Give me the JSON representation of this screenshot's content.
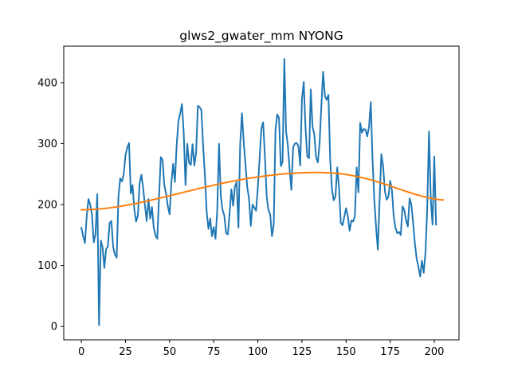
{
  "chart_data": {
    "type": "line",
    "title": "glws2_gwater_mm NYONG",
    "xlabel": "",
    "ylabel": "",
    "xlim": [
      -10,
      214
    ],
    "ylim": [
      -22,
      460
    ],
    "x_ticks": [
      0,
      25,
      50,
      75,
      100,
      125,
      150,
      175,
      200
    ],
    "y_ticks": [
      0,
      100,
      200,
      300,
      400
    ],
    "grid": false,
    "series": [
      {
        "color": "#1f77b4",
        "x_start": 0,
        "x_step": 1,
        "values": [
          162,
          148,
          137,
          180,
          209,
          200,
          183,
          138,
          152,
          217,
          2,
          141,
          130,
          96,
          127,
          131,
          170,
          173,
          130,
          118,
          113,
          213,
          243,
          238,
          250,
          281,
          294,
          301,
          218,
          232,
          192,
          172,
          182,
          235,
          249,
          227,
          199,
          173,
          209,
          177,
          196,
          162,
          149,
          144,
          213,
          278,
          273,
          232,
          218,
          197,
          184,
          236,
          267,
          237,
          298,
          337,
          350,
          365,
          317,
          232,
          300,
          269,
          265,
          299,
          264,
          285,
          362,
          360,
          355,
          296,
          248,
          188,
          160,
          177,
          148,
          163,
          144,
          191,
          300,
          214,
          191,
          182,
          153,
          151,
          186,
          225,
          198,
          230,
          237,
          162,
          300,
          350,
          302,
          266,
          228,
          210,
          165,
          200,
          195,
          190,
          228,
          276,
          325,
          335,
          279,
          214,
          191,
          184,
          148,
          167,
          323,
          348,
          342,
          263,
          270,
          439,
          320,
          297,
          258,
          224,
          294,
          300,
          301,
          296,
          264,
          373,
          401,
          327,
          279,
          276,
          389,
          328,
          315,
          278,
          269,
          301,
          363,
          418,
          378,
          372,
          380,
          273,
          225,
          207,
          214,
          261,
          228,
          170,
          166,
          180,
          194,
          181,
          157,
          174,
          172,
          181,
          261,
          220,
          334,
          318,
          324,
          323,
          312,
          328,
          368,
          273,
          208,
          163,
          126,
          207,
          283,
          263,
          222,
          208,
          213,
          239,
          223,
          180,
          162,
          153,
          155,
          150,
          197,
          191,
          174,
          164,
          210,
          200,
          170,
          136,
          111,
          98,
          82,
          108,
          88,
          121,
          194,
          320,
          210,
          167,
          279,
          167
        ]
      },
      {
        "color": "#ff7f0e",
        "x_start": 0,
        "x_step": 1,
        "values": [
          191.5,
          191.5,
          191.6,
          191.6,
          191.7,
          191.8,
          192.0,
          192.1,
          192.3,
          192.5,
          192.8,
          193.0,
          193.3,
          193.6,
          193.9,
          194.2,
          194.6,
          195.0,
          195.4,
          195.8,
          196.2,
          196.7,
          197.1,
          197.6,
          198.1,
          198.6,
          199.1,
          199.7,
          200.2,
          200.8,
          201.3,
          201.9,
          202.5,
          203.1,
          203.7,
          204.4,
          205.0,
          205.6,
          206.3,
          206.9,
          207.6,
          208.3,
          208.9,
          209.6,
          210.3,
          211.0,
          211.7,
          212.4,
          213.1,
          213.8,
          214.5,
          215.2,
          215.9,
          216.6,
          217.3,
          218.0,
          218.7,
          219.4,
          220.2,
          220.9,
          221.6,
          222.3,
          223.0,
          223.7,
          224.4,
          225.1,
          225.8,
          226.5,
          227.2,
          227.8,
          228.5,
          229.2,
          229.9,
          230.5,
          231.2,
          231.8,
          232.5,
          233.1,
          233.8,
          234.4,
          235.0,
          235.6,
          236.2,
          236.8,
          237.4,
          238.0,
          238.5,
          239.1,
          239.6,
          240.2,
          240.7,
          241.2,
          241.7,
          242.2,
          242.7,
          243.2,
          243.6,
          244.1,
          244.5,
          245.0,
          245.4,
          245.8,
          246.2,
          246.5,
          246.9,
          247.3,
          247.6,
          248.0,
          248.3,
          248.6,
          248.9,
          249.2,
          249.5,
          249.8,
          250.1,
          250.3,
          250.6,
          250.8,
          251.0,
          251.2,
          251.4,
          251.6,
          251.8,
          251.9,
          252.1,
          252.2,
          252.3,
          252.4,
          252.5,
          252.6,
          252.6,
          252.7,
          252.7,
          252.7,
          252.7,
          252.7,
          252.6,
          252.5,
          252.4,
          252.3,
          252.2,
          252.0,
          251.8,
          251.6,
          251.4,
          251.1,
          250.8,
          250.5,
          250.1,
          249.7,
          249.3,
          248.9,
          248.4,
          247.9,
          247.4,
          246.8,
          246.2,
          245.6,
          244.9,
          244.3,
          243.6,
          242.8,
          242.1,
          241.3,
          240.5,
          239.7,
          238.8,
          238.0,
          237.1,
          236.2,
          235.3,
          234.4,
          233.4,
          232.5,
          231.5,
          230.6,
          229.6,
          228.6,
          227.6,
          226.6,
          225.6,
          224.6,
          223.7,
          222.7,
          221.7,
          220.8,
          219.8,
          218.9,
          218.0,
          217.1,
          216.2,
          215.4,
          214.5,
          213.8,
          213.0,
          212.3,
          211.6,
          210.9,
          210.3,
          209.8,
          209.3,
          208.8,
          208.4,
          208.1,
          207.8,
          207.6
        ]
      }
    ]
  }
}
